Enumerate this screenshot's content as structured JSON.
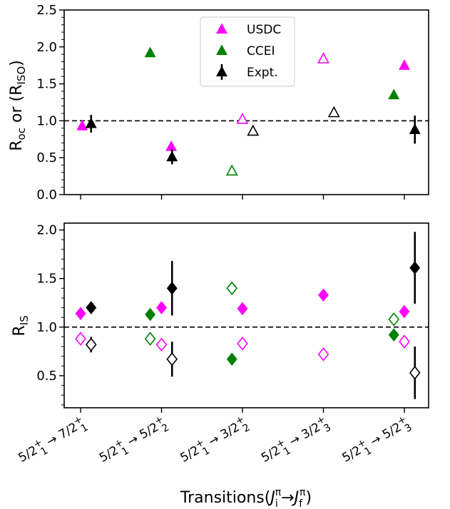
{
  "chart_data": [
    {
      "type": "scatter",
      "panel": "top",
      "ylabel": "R_oc or (R_ISO)",
      "ylabel_parts": {
        "a": "R",
        "a_sub": "oc",
        "b": " or (",
        "c": "R",
        "c_sub": "ISO",
        "d": ")"
      },
      "ylim": [
        0.0,
        2.5
      ],
      "yticks": [
        "0.0",
        "0.5",
        "1.0",
        "1.5",
        "2.0",
        "2.5"
      ],
      "reference_line": 1.0,
      "legend": {
        "position": "top-center",
        "entries": [
          "USDC",
          "CCEI",
          "Expt."
        ]
      },
      "series": [
        {
          "name": "USDC",
          "color": "#ff00ff",
          "marker": "triangle",
          "points": [
            {
              "x": 0.02,
              "y": 0.93,
              "filled": true
            },
            {
              "x": 1.12,
              "y": 0.65,
              "filled": true
            },
            {
              "x": 2.0,
              "y": 1.02,
              "filled": false
            },
            {
              "x": 3.0,
              "y": 1.84,
              "filled": false
            },
            {
              "x": 4.0,
              "y": 1.75,
              "filled": true
            }
          ]
        },
        {
          "name": "CCEI",
          "color": "#008000",
          "marker": "triangle",
          "points": [
            {
              "x": 0.86,
              "y": 1.92,
              "filled": true
            },
            {
              "x": 1.87,
              "y": 0.32,
              "filled": false
            },
            {
              "x": 3.87,
              "y": 1.35,
              "filled": true
            }
          ]
        },
        {
          "name": "Expt.",
          "color": "#000000",
          "marker": "triangle",
          "points": [
            {
              "x": 0.13,
              "y": 0.96,
              "err": 0.12,
              "filled": true
            },
            {
              "x": 1.13,
              "y": 0.51,
              "err": 0.1,
              "filled": true
            },
            {
              "x": 2.13,
              "y": 0.86,
              "err": 0.06,
              "filled": false
            },
            {
              "x": 3.13,
              "y": 1.11,
              "err": 0.03,
              "filled": false
            },
            {
              "x": 4.13,
              "y": 0.88,
              "err": 0.19,
              "filled": true
            }
          ]
        }
      ]
    },
    {
      "type": "scatter",
      "panel": "bottom",
      "ylabel": "R_IS",
      "ylabel_parts": {
        "a": "R",
        "a_sub": "IS"
      },
      "ylim": [
        0.17,
        2.07
      ],
      "yticks": [
        "0.5",
        "1.0",
        "1.5",
        "2.0"
      ],
      "reference_line": 1.0,
      "series": [
        {
          "name": "USDC",
          "color": "#ff00ff",
          "marker": "diamond",
          "points": [
            {
              "x": 0.0,
              "y": 1.14,
              "filled": true
            },
            {
              "x": 0.0,
              "y": 0.88,
              "filled": false
            },
            {
              "x": 1.0,
              "y": 1.2,
              "filled": true
            },
            {
              "x": 1.0,
              "y": 0.82,
              "filled": false
            },
            {
              "x": 2.0,
              "y": 1.19,
              "filled": true
            },
            {
              "x": 2.0,
              "y": 0.83,
              "filled": false
            },
            {
              "x": 3.0,
              "y": 1.33,
              "filled": true
            },
            {
              "x": 3.0,
              "y": 0.72,
              "filled": false
            },
            {
              "x": 4.0,
              "y": 1.16,
              "filled": true
            },
            {
              "x": 4.0,
              "y": 0.85,
              "filled": false
            }
          ]
        },
        {
          "name": "CCEI",
          "color": "#008000",
          "marker": "diamond",
          "points": [
            {
              "x": 0.86,
              "y": 1.13,
              "filled": true
            },
            {
              "x": 0.86,
              "y": 0.88,
              "filled": false
            },
            {
              "x": 1.87,
              "y": 1.4,
              "filled": false
            },
            {
              "x": 1.87,
              "y": 0.67,
              "filled": true
            },
            {
              "x": 3.87,
              "y": 1.08,
              "filled": false
            },
            {
              "x": 3.87,
              "y": 0.92,
              "filled": true
            }
          ]
        },
        {
          "name": "Expt.",
          "color": "#000000",
          "marker": "diamond",
          "points": [
            {
              "x": 0.13,
              "y": 1.2,
              "err": 0.0,
              "filled": true
            },
            {
              "x": 0.13,
              "y": 0.82,
              "err": 0.08,
              "filled": false
            },
            {
              "x": 1.13,
              "y": 1.4,
              "err": 0.28,
              "filled": true
            },
            {
              "x": 1.13,
              "y": 0.67,
              "err": 0.18,
              "filled": false
            },
            {
              "x": 4.13,
              "y": 1.61,
              "err": 0.37,
              "filled": true
            },
            {
              "x": 4.13,
              "y": 0.53,
              "err": 0.27,
              "filled": false
            }
          ]
        }
      ]
    }
  ],
  "x_categories": [
    {
      "num": "5/2",
      "num_sup": "+",
      "num_sub": "1",
      "den": "7/2",
      "den_sup": "+",
      "den_sub": "1"
    },
    {
      "num": "5/2",
      "num_sup": "+",
      "num_sub": "1",
      "den": "5/2",
      "den_sup": "+",
      "den_sub": "2"
    },
    {
      "num": "5/2",
      "num_sup": "+",
      "num_sub": "1",
      "den": "3/2",
      "den_sup": "+",
      "den_sub": "2"
    },
    {
      "num": "5/2",
      "num_sup": "+",
      "num_sub": "1",
      "den": "3/2",
      "den_sup": "+",
      "den_sub": "3"
    },
    {
      "num": "5/2",
      "num_sup": "+",
      "num_sub": "1",
      "den": "5/2",
      "den_sup": "+",
      "den_sub": "3"
    }
  ],
  "xlabel": "Transitions(J_i^π → J_f^π)",
  "xlabel_parts": {
    "pre": "Transitions(",
    "j": "J",
    "sub_i": "i",
    "sup": "π",
    "arrow": "→",
    "sub_f": "f",
    "post": ")"
  }
}
